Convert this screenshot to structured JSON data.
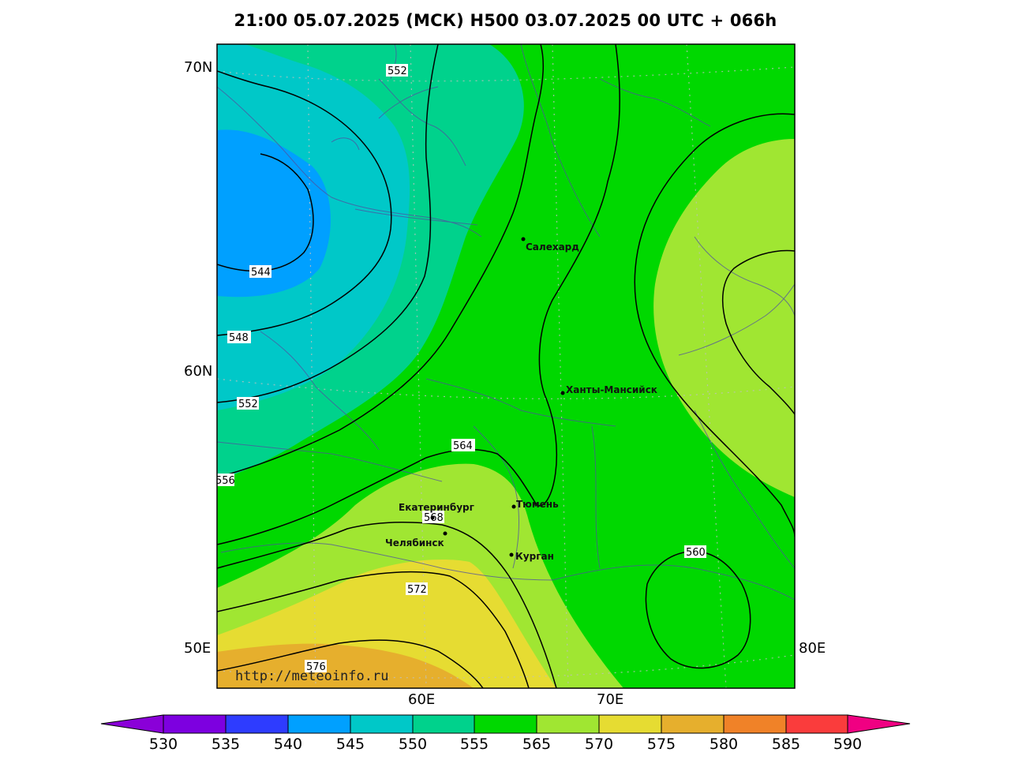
{
  "title": "21:00 05.07.2025 (МСК) H500  03.07.2025 00 UTC + 066h",
  "axes": {
    "lat_labels": [
      "70N",
      "60N",
      "50E"
    ],
    "lon_labels": [
      "60E",
      "70E",
      "80E"
    ]
  },
  "contour_labels": [
    "552",
    "544",
    "548",
    "552",
    "556",
    "564",
    "568",
    "572",
    "576",
    "560"
  ],
  "cities": [
    {
      "name": "Салехард"
    },
    {
      "name": "Ханты-Мансийск"
    },
    {
      "name": "Екатеринбург"
    },
    {
      "name": "Тюмень"
    },
    {
      "name": "Челябинск"
    },
    {
      "name": "Курган"
    }
  ],
  "watermark": "http://meteoinfo.ru",
  "colorbar": {
    "labels": [
      "530",
      "535",
      "540",
      "545",
      "550",
      "555",
      "565",
      "570",
      "575",
      "580",
      "585",
      "590"
    ],
    "colors": [
      "#8a00d8",
      "#7d00e0",
      "#2e3cff",
      "#00a0ff",
      "#00c8c8",
      "#00d28c",
      "#00d800",
      "#a0e632",
      "#e6dc32",
      "#e6af2d",
      "#f08228",
      "#fa3c3c",
      "#f00082"
    ]
  },
  "legend_colors": {
    "c545": "#00a0ff",
    "c550": "#00c8c8",
    "c555": "#00d28c",
    "c565": "#00d800",
    "c570": "#a0e632",
    "c575": "#e6dc32",
    "c580": "#e6af2d"
  }
}
